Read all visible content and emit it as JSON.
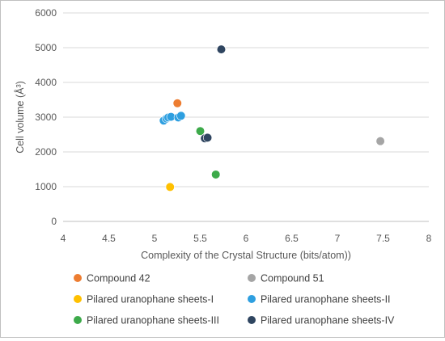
{
  "chart_data": {
    "type": "scatter",
    "xlabel": "Complexity of the Crystal Structure (bits/atom))",
    "ylabel": "Cell volume (Å³)",
    "xlim": [
      4,
      8
    ],
    "ylim": [
      0,
      6000
    ],
    "xticks": [
      "4",
      "4.5",
      "5",
      "5.5",
      "6",
      "6.5",
      "7",
      "7.5",
      "8"
    ],
    "yticks": [
      "0",
      "1000",
      "2000",
      "3000",
      "4000",
      "5000",
      "6000"
    ],
    "grid": "horizontal",
    "legend_position": "bottom",
    "series": [
      {
        "name": "Compound 42",
        "color": "#ED7D31",
        "points": [
          {
            "x": 5.25,
            "y": 3400
          }
        ]
      },
      {
        "name": "Compound 51",
        "color": "#A5A5A5",
        "points": [
          {
            "x": 7.47,
            "y": 2310
          }
        ]
      },
      {
        "name": "Pilared uranophane sheets-I",
        "color": "#FFC000",
        "points": [
          {
            "x": 5.17,
            "y": 990
          }
        ]
      },
      {
        "name": "Pilared uranophane sheets-II",
        "color": "#2E9FE0",
        "points": [
          {
            "x": 5.1,
            "y": 2900
          },
          {
            "x": 5.13,
            "y": 2960
          },
          {
            "x": 5.15,
            "y": 2990
          },
          {
            "x": 5.18,
            "y": 3010
          },
          {
            "x": 5.26,
            "y": 2990
          },
          {
            "x": 5.29,
            "y": 3040
          }
        ]
      },
      {
        "name": "Pilared uranophane sheets-III",
        "color": "#3DAA4A",
        "points": [
          {
            "x": 5.5,
            "y": 2600
          },
          {
            "x": 5.67,
            "y": 1350
          }
        ]
      },
      {
        "name": "Pilared uranophane sheets-IV",
        "color": "#2F4560",
        "points": [
          {
            "x": 5.55,
            "y": 2390
          },
          {
            "x": 5.58,
            "y": 2410
          },
          {
            "x": 5.73,
            "y": 4950
          }
        ]
      }
    ]
  }
}
